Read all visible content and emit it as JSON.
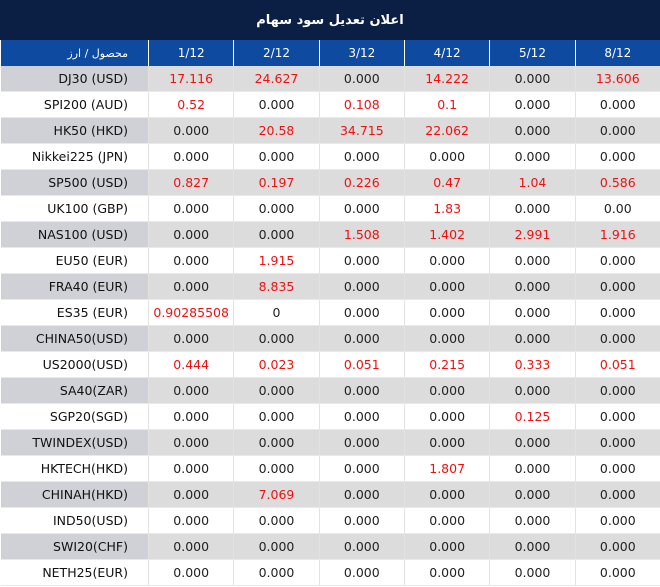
{
  "title": "اعلان تعدیل سود سهام",
  "header": {
    "first": "محصول / ارز",
    "dates": [
      "1/12",
      "2/12",
      "3/12",
      "4/12",
      "5/12",
      "8/12"
    ]
  },
  "colors": {
    "title_bg": "#0b1f45",
    "header_bg": "#0d4aa0",
    "highlight_text": "#ee1111",
    "zebra": "#dcdcdc"
  },
  "rows": [
    {
      "name": "DJ30 (USD)",
      "values": [
        "17.116",
        "24.627",
        "0.000",
        "14.222",
        "0.000",
        "13.606"
      ],
      "highlight": [
        true,
        true,
        false,
        true,
        false,
        true
      ]
    },
    {
      "name": "SPI200 (AUD)",
      "values": [
        "0.52",
        "0.000",
        "0.108",
        "0.1",
        "0.000",
        "0.000"
      ],
      "highlight": [
        true,
        false,
        true,
        true,
        false,
        false
      ]
    },
    {
      "name": "HK50 (HKD)",
      "values": [
        "0.000",
        "20.58",
        "34.715",
        "22.062",
        "0.000",
        "0.000"
      ],
      "highlight": [
        false,
        true,
        true,
        true,
        false,
        false
      ]
    },
    {
      "name": "Nikkei225 (JPN)",
      "values": [
        "0.000",
        "0.000",
        "0.000",
        "0.000",
        "0.000",
        "0.000"
      ],
      "highlight": [
        false,
        false,
        false,
        false,
        false,
        false
      ]
    },
    {
      "name": "SP500 (USD)",
      "values": [
        "0.827",
        "0.197",
        "0.226",
        "0.47",
        "1.04",
        "0.586"
      ],
      "highlight": [
        true,
        true,
        true,
        true,
        true,
        true
      ]
    },
    {
      "name": "UK100 (GBP)",
      "values": [
        "0.000",
        "0.000",
        "0.000",
        "1.83",
        "0.000",
        "0.00"
      ],
      "highlight": [
        false,
        false,
        false,
        true,
        false,
        false
      ]
    },
    {
      "name": "NAS100 (USD)",
      "values": [
        "0.000",
        "0.000",
        "1.508",
        "1.402",
        "2.991",
        "1.916"
      ],
      "highlight": [
        false,
        false,
        true,
        true,
        true,
        true
      ]
    },
    {
      "name": "EU50 (EUR)",
      "values": [
        "0.000",
        "1.915",
        "0.000",
        "0.000",
        "0.000",
        "0.000"
      ],
      "highlight": [
        false,
        true,
        false,
        false,
        false,
        false
      ]
    },
    {
      "name": "FRA40 (EUR)",
      "values": [
        "0.000",
        "8.835",
        "0.000",
        "0.000",
        "0.000",
        "0.000"
      ],
      "highlight": [
        false,
        true,
        false,
        false,
        false,
        false
      ]
    },
    {
      "name": "ES35 (EUR)",
      "values": [
        "0.90285508",
        "0",
        "0.000",
        "0.000",
        "0.000",
        "0.000"
      ],
      "highlight": [
        true,
        false,
        false,
        false,
        false,
        false
      ]
    },
    {
      "name": "CHINA50(USD)",
      "values": [
        "0.000",
        "0.000",
        "0.000",
        "0.000",
        "0.000",
        "0.000"
      ],
      "highlight": [
        false,
        false,
        false,
        false,
        false,
        false
      ]
    },
    {
      "name": "US2000(USD)",
      "values": [
        "0.444",
        "0.023",
        "0.051",
        "0.215",
        "0.333",
        "0.051"
      ],
      "highlight": [
        true,
        true,
        true,
        true,
        true,
        true
      ]
    },
    {
      "name": "SA40(ZAR)",
      "values": [
        "0.000",
        "0.000",
        "0.000",
        "0.000",
        "0.000",
        "0.000"
      ],
      "highlight": [
        false,
        false,
        false,
        false,
        false,
        false
      ]
    },
    {
      "name": "SGP20(SGD)",
      "values": [
        "0.000",
        "0.000",
        "0.000",
        "0.000",
        "0.125",
        "0.000"
      ],
      "highlight": [
        false,
        false,
        false,
        false,
        true,
        false
      ]
    },
    {
      "name": "TWINDEX(USD)",
      "values": [
        "0.000",
        "0.000",
        "0.000",
        "0.000",
        "0.000",
        "0.000"
      ],
      "highlight": [
        false,
        false,
        false,
        false,
        false,
        false
      ]
    },
    {
      "name": "HKTECH(HKD)",
      "values": [
        "0.000",
        "0.000",
        "0.000",
        "1.807",
        "0.000",
        "0.000"
      ],
      "highlight": [
        false,
        false,
        false,
        true,
        false,
        false
      ]
    },
    {
      "name": "CHINAH(HKD)",
      "values": [
        "0.000",
        "7.069",
        "0.000",
        "0.000",
        "0.000",
        "0.000"
      ],
      "highlight": [
        false,
        true,
        false,
        false,
        false,
        false
      ]
    },
    {
      "name": "IND50(USD)",
      "values": [
        "0.000",
        "0.000",
        "0.000",
        "0.000",
        "0.000",
        "0.000"
      ],
      "highlight": [
        false,
        false,
        false,
        false,
        false,
        false
      ]
    },
    {
      "name": "SWI20(CHF)",
      "values": [
        "0.000",
        "0.000",
        "0.000",
        "0.000",
        "0.000",
        "0.000"
      ],
      "highlight": [
        false,
        false,
        false,
        false,
        false,
        false
      ]
    },
    {
      "name": "NETH25(EUR)",
      "values": [
        "0.000",
        "0.000",
        "0.000",
        "0.000",
        "0.000",
        "0.000"
      ],
      "highlight": [
        false,
        false,
        false,
        false,
        false,
        false
      ]
    }
  ]
}
